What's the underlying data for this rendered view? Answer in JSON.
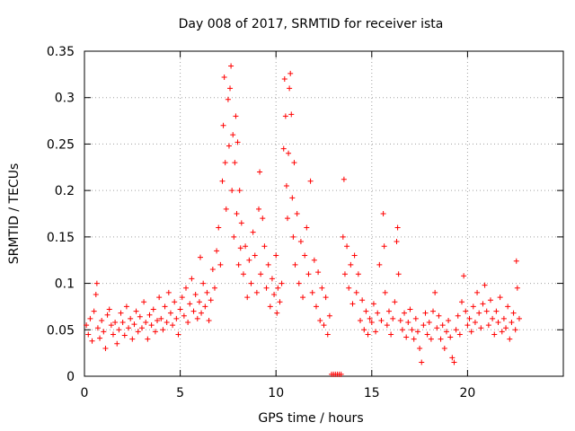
{
  "chart_data": {
    "type": "scatter",
    "title": "Day 008 of 2017, SRMTID for receiver ista",
    "xlabel": "GPS time / hours",
    "ylabel": "SRMTID / TECUs",
    "xlim": [
      0,
      25
    ],
    "ylim": [
      0,
      0.35
    ],
    "xticks": [
      0,
      5,
      10,
      15,
      20
    ],
    "xtick_labels": [
      "0",
      "5",
      "10",
      "15",
      "20"
    ],
    "yticks": [
      0,
      0.05,
      0.1,
      0.15,
      0.2,
      0.25,
      0.3,
      0.35
    ],
    "ytick_labels": [
      "0",
      "0.05",
      "0.1",
      "0.15",
      "0.2",
      "0.25",
      "0.3",
      "0.35"
    ],
    "grid": true,
    "marker": "plus",
    "color": "#ff0000",
    "series": [
      {
        "name": "SRMTID",
        "points": [
          [
            0.1,
            0.055
          ],
          [
            0.2,
            0.045
          ],
          [
            0.3,
            0.062
          ],
          [
            0.4,
            0.038
          ],
          [
            0.5,
            0.07
          ],
          [
            0.6,
            0.088
          ],
          [
            0.65,
            0.1
          ],
          [
            0.7,
            0.052
          ],
          [
            0.8,
            0.041
          ],
          [
            0.9,
            0.06
          ],
          [
            1.0,
            0.048
          ],
          [
            1.1,
            0.03
          ],
          [
            1.2,
            0.066
          ],
          [
            1.3,
            0.072
          ],
          [
            1.4,
            0.055
          ],
          [
            1.5,
            0.045
          ],
          [
            1.6,
            0.058
          ],
          [
            1.7,
            0.035
          ],
          [
            1.8,
            0.05
          ],
          [
            1.9,
            0.068
          ],
          [
            2.0,
            0.058
          ],
          [
            2.1,
            0.044
          ],
          [
            2.2,
            0.075
          ],
          [
            2.3,
            0.052
          ],
          [
            2.4,
            0.062
          ],
          [
            2.5,
            0.04
          ],
          [
            2.6,
            0.056
          ],
          [
            2.7,
            0.07
          ],
          [
            2.8,
            0.048
          ],
          [
            2.9,
            0.064
          ],
          [
            3.0,
            0.052
          ],
          [
            3.1,
            0.08
          ],
          [
            3.2,
            0.058
          ],
          [
            3.3,
            0.04
          ],
          [
            3.4,
            0.066
          ],
          [
            3.5,
            0.055
          ],
          [
            3.6,
            0.072
          ],
          [
            3.7,
            0.048
          ],
          [
            3.8,
            0.06
          ],
          [
            3.9,
            0.085
          ],
          [
            4.0,
            0.062
          ],
          [
            4.1,
            0.05
          ],
          [
            4.2,
            0.075
          ],
          [
            4.3,
            0.058
          ],
          [
            4.4,
            0.09
          ],
          [
            4.5,
            0.068
          ],
          [
            4.6,
            0.055
          ],
          [
            4.7,
            0.08
          ],
          [
            4.8,
            0.062
          ],
          [
            4.9,
            0.045
          ],
          [
            5.0,
            0.072
          ],
          [
            5.1,
            0.085
          ],
          [
            5.2,
            0.065
          ],
          [
            5.3,
            0.095
          ],
          [
            5.4,
            0.058
          ],
          [
            5.5,
            0.078
          ],
          [
            5.6,
            0.105
          ],
          [
            5.7,
            0.07
          ],
          [
            5.8,
            0.088
          ],
          [
            5.9,
            0.062
          ],
          [
            6.0,
            0.08
          ],
          [
            6.05,
            0.128
          ],
          [
            6.1,
            0.068
          ],
          [
            6.2,
            0.1
          ],
          [
            6.3,
            0.075
          ],
          [
            6.4,
            0.09
          ],
          [
            6.5,
            0.06
          ],
          [
            6.6,
            0.082
          ],
          [
            6.7,
            0.115
          ],
          [
            6.8,
            0.095
          ],
          [
            6.9,
            0.135
          ],
          [
            7.0,
            0.16
          ],
          [
            7.1,
            0.12
          ],
          [
            7.2,
            0.21
          ],
          [
            7.25,
            0.27
          ],
          [
            7.3,
            0.322
          ],
          [
            7.35,
            0.23
          ],
          [
            7.4,
            0.18
          ],
          [
            7.5,
            0.298
          ],
          [
            7.55,
            0.248
          ],
          [
            7.6,
            0.31
          ],
          [
            7.65,
            0.334
          ],
          [
            7.7,
            0.2
          ],
          [
            7.75,
            0.26
          ],
          [
            7.8,
            0.15
          ],
          [
            7.85,
            0.23
          ],
          [
            7.9,
            0.28
          ],
          [
            7.95,
            0.175
          ],
          [
            8.0,
            0.252
          ],
          [
            8.05,
            0.12
          ],
          [
            8.1,
            0.2
          ],
          [
            8.15,
            0.138
          ],
          [
            8.2,
            0.165
          ],
          [
            8.3,
            0.11
          ],
          [
            8.4,
            0.14
          ],
          [
            8.5,
            0.085
          ],
          [
            8.6,
            0.125
          ],
          [
            8.7,
            0.1
          ],
          [
            8.8,
            0.155
          ],
          [
            8.9,
            0.13
          ],
          [
            9.0,
            0.09
          ],
          [
            9.1,
            0.18
          ],
          [
            9.15,
            0.22
          ],
          [
            9.2,
            0.11
          ],
          [
            9.3,
            0.17
          ],
          [
            9.4,
            0.14
          ],
          [
            9.5,
            0.095
          ],
          [
            9.6,
            0.12
          ],
          [
            9.7,
            0.075
          ],
          [
            9.8,
            0.105
          ],
          [
            9.9,
            0.088
          ],
          [
            10.0,
            0.13
          ],
          [
            10.05,
            0.068
          ],
          [
            10.1,
            0.095
          ],
          [
            10.2,
            0.08
          ],
          [
            10.3,
            0.1
          ],
          [
            10.4,
            0.245
          ],
          [
            10.45,
            0.32
          ],
          [
            10.5,
            0.28
          ],
          [
            10.55,
            0.205
          ],
          [
            10.6,
            0.17
          ],
          [
            10.65,
            0.24
          ],
          [
            10.7,
            0.31
          ],
          [
            10.75,
            0.326
          ],
          [
            10.8,
            0.282
          ],
          [
            10.85,
            0.192
          ],
          [
            10.9,
            0.15
          ],
          [
            10.95,
            0.23
          ],
          [
            11.0,
            0.12
          ],
          [
            11.1,
            0.175
          ],
          [
            11.2,
            0.1
          ],
          [
            11.3,
            0.145
          ],
          [
            11.4,
            0.085
          ],
          [
            11.5,
            0.13
          ],
          [
            11.6,
            0.16
          ],
          [
            11.7,
            0.11
          ],
          [
            11.8,
            0.21
          ],
          [
            11.9,
            0.09
          ],
          [
            12.0,
            0.125
          ],
          [
            12.1,
            0.075
          ],
          [
            12.2,
            0.112
          ],
          [
            12.3,
            0.06
          ],
          [
            12.4,
            0.095
          ],
          [
            12.5,
            0.055
          ],
          [
            12.6,
            0.085
          ],
          [
            12.7,
            0.045
          ],
          [
            12.8,
            0.065
          ],
          [
            12.9,
            0.002
          ],
          [
            13.0,
            0.002
          ],
          [
            13.1,
            0.002
          ],
          [
            13.2,
            0.002
          ],
          [
            13.3,
            0.002
          ],
          [
            13.4,
            0.002
          ],
          [
            13.5,
            0.15
          ],
          [
            13.55,
            0.212
          ],
          [
            13.6,
            0.11
          ],
          [
            13.7,
            0.14
          ],
          [
            13.8,
            0.095
          ],
          [
            13.9,
            0.12
          ],
          [
            14.0,
            0.078
          ],
          [
            14.1,
            0.13
          ],
          [
            14.2,
            0.09
          ],
          [
            14.3,
            0.11
          ],
          [
            14.4,
            0.06
          ],
          [
            14.5,
            0.082
          ],
          [
            14.6,
            0.05
          ],
          [
            14.7,
            0.07
          ],
          [
            14.8,
            0.045
          ],
          [
            14.9,
            0.062
          ],
          [
            15.0,
            0.058
          ],
          [
            15.1,
            0.078
          ],
          [
            15.2,
            0.048
          ],
          [
            15.3,
            0.068
          ],
          [
            15.4,
            0.12
          ],
          [
            15.5,
            0.06
          ],
          [
            15.6,
            0.175
          ],
          [
            15.65,
            0.14
          ],
          [
            15.7,
            0.09
          ],
          [
            15.8,
            0.055
          ],
          [
            15.9,
            0.07
          ],
          [
            16.0,
            0.045
          ],
          [
            16.1,
            0.062
          ],
          [
            16.2,
            0.08
          ],
          [
            16.3,
            0.145
          ],
          [
            16.35,
            0.16
          ],
          [
            16.4,
            0.11
          ],
          [
            16.5,
            0.06
          ],
          [
            16.6,
            0.05
          ],
          [
            16.7,
            0.068
          ],
          [
            16.8,
            0.042
          ],
          [
            16.9,
            0.058
          ],
          [
            17.0,
            0.072
          ],
          [
            17.1,
            0.05
          ],
          [
            17.2,
            0.04
          ],
          [
            17.3,
            0.062
          ],
          [
            17.4,
            0.048
          ],
          [
            17.5,
            0.03
          ],
          [
            17.6,
            0.015
          ],
          [
            17.7,
            0.055
          ],
          [
            17.8,
            0.068
          ],
          [
            17.9,
            0.045
          ],
          [
            18.0,
            0.058
          ],
          [
            18.1,
            0.04
          ],
          [
            18.2,
            0.07
          ],
          [
            18.3,
            0.09
          ],
          [
            18.4,
            0.052
          ],
          [
            18.5,
            0.065
          ],
          [
            18.6,
            0.04
          ],
          [
            18.7,
            0.055
          ],
          [
            18.8,
            0.03
          ],
          [
            18.9,
            0.048
          ],
          [
            19.0,
            0.06
          ],
          [
            19.1,
            0.042
          ],
          [
            19.2,
            0.02
          ],
          [
            19.3,
            0.015
          ],
          [
            19.4,
            0.05
          ],
          [
            19.5,
            0.065
          ],
          [
            19.6,
            0.045
          ],
          [
            19.7,
            0.08
          ],
          [
            19.8,
            0.108
          ],
          [
            19.9,
            0.07
          ],
          [
            20.0,
            0.055
          ],
          [
            20.1,
            0.062
          ],
          [
            20.2,
            0.048
          ],
          [
            20.3,
            0.075
          ],
          [
            20.4,
            0.058
          ],
          [
            20.5,
            0.09
          ],
          [
            20.6,
            0.068
          ],
          [
            20.7,
            0.052
          ],
          [
            20.8,
            0.078
          ],
          [
            20.9,
            0.098
          ],
          [
            21.0,
            0.07
          ],
          [
            21.1,
            0.055
          ],
          [
            21.2,
            0.082
          ],
          [
            21.3,
            0.062
          ],
          [
            21.4,
            0.045
          ],
          [
            21.5,
            0.07
          ],
          [
            21.6,
            0.058
          ],
          [
            21.7,
            0.085
          ],
          [
            21.8,
            0.048
          ],
          [
            21.9,
            0.062
          ],
          [
            22.0,
            0.052
          ],
          [
            22.1,
            0.075
          ],
          [
            22.2,
            0.04
          ],
          [
            22.3,
            0.058
          ],
          [
            22.4,
            0.068
          ],
          [
            22.5,
            0.05
          ],
          [
            22.55,
            0.124
          ],
          [
            22.6,
            0.095
          ],
          [
            22.7,
            0.062
          ]
        ]
      }
    ]
  }
}
